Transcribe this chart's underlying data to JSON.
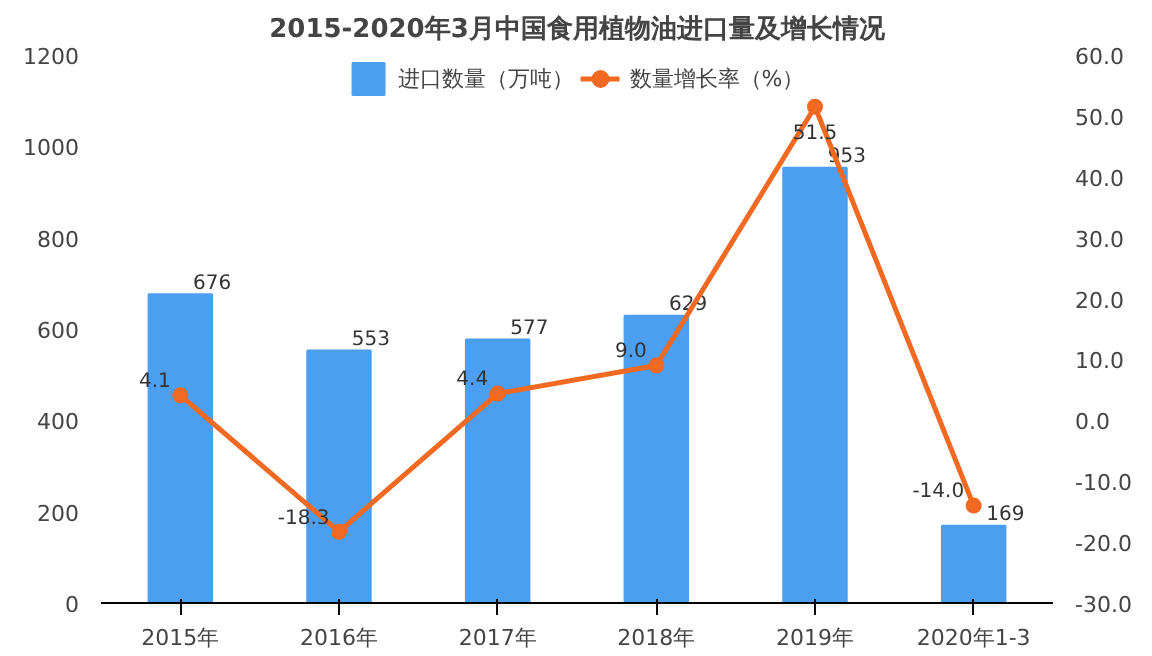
{
  "chart_data": {
    "type": "bar",
    "title": "2015-2020年3月中国食用植物油进口量及增长情况",
    "categories": [
      "2015年",
      "2016年",
      "2017年",
      "2018年",
      "2019年",
      "2020年1-3"
    ],
    "series": [
      {
        "name": "进口数量（万吨）",
        "color": "#4b9ef0",
        "values": [
          676,
          553,
          577,
          629,
          953,
          169
        ],
        "value_labels": [
          "676",
          "553",
          "577",
          "629",
          "953",
          "169"
        ]
      },
      {
        "name": "数量增长率（%）",
        "type": "line",
        "axis": "y2",
        "color": "#f26a22",
        "marker": "circle",
        "values": [
          4.1,
          -18.3,
          4.4,
          9.0,
          51.5,
          -14.0
        ],
        "value_labels": [
          "4.1",
          "-18.3",
          "4.4",
          "9.0",
          "51.5",
          "-14.0"
        ]
      }
    ],
    "ylim": [
      0,
      1200
    ],
    "yticks": [
      0,
      200,
      400,
      600,
      800,
      1000,
      1200
    ],
    "y2lim": [
      -30,
      60
    ],
    "y2ticks": [
      {
        "value": -30,
        "label": "-30.0"
      },
      {
        "value": -20,
        "label": "-20.0"
      },
      {
        "value": -10,
        "label": "-10.0"
      },
      {
        "value": 0,
        "label": "0.0"
      },
      {
        "value": 10,
        "label": "10.0"
      },
      {
        "value": 20,
        "label": "20.0"
      },
      {
        "value": 30,
        "label": "30.0"
      },
      {
        "value": 40,
        "label": "40.0"
      },
      {
        "value": 50,
        "label": "50.0"
      },
      {
        "value": 60,
        "label": "60.0"
      }
    ],
    "legend": "top",
    "grid": false
  }
}
